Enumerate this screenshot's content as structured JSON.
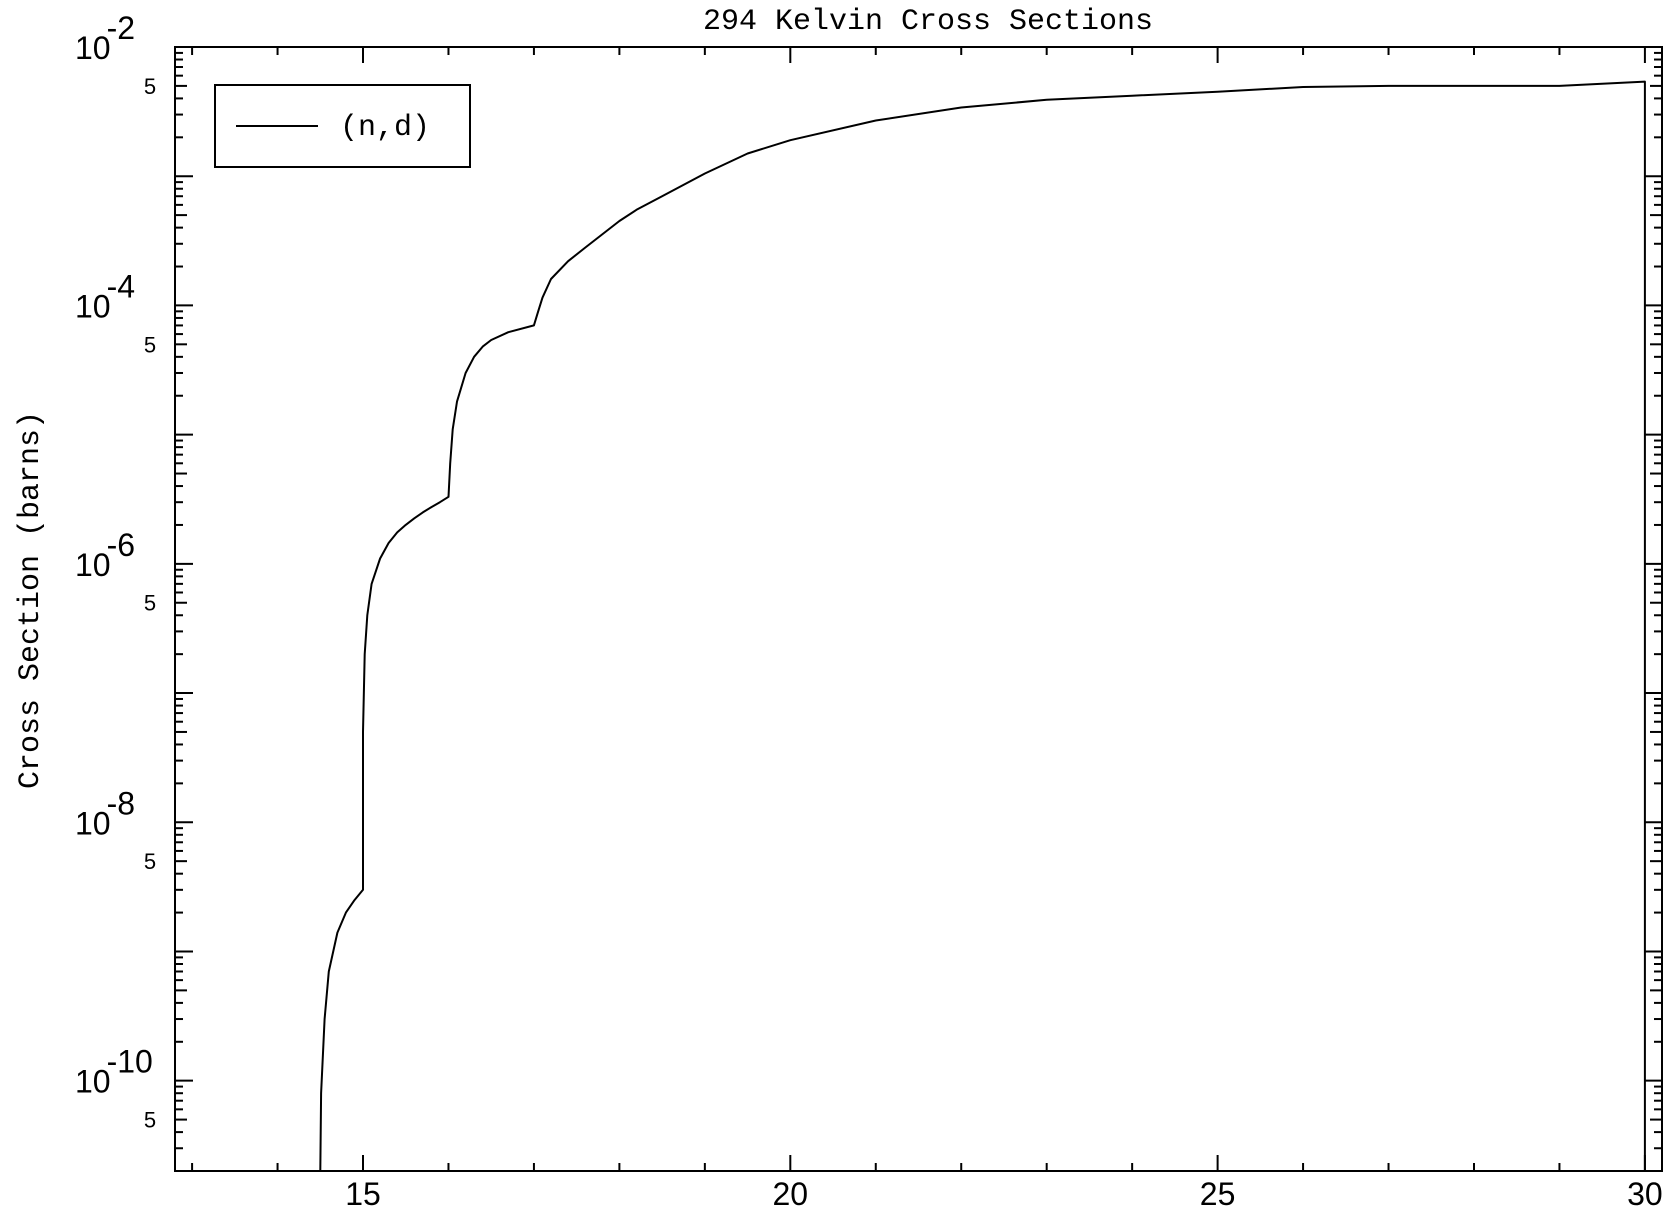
{
  "chart_data": {
    "type": "line",
    "title": "294 Kelvin Cross Sections",
    "xlabel": "",
    "ylabel": "Cross Section (barns)",
    "xlim": [
      12.8,
      30.2
    ],
    "ylim": [
      2e-11,
      0.01
    ],
    "y_scale": "log",
    "x_ticks": [
      15,
      20,
      25,
      30
    ],
    "x_tick_labels": [
      "15",
      "20",
      "25",
      "30"
    ],
    "y_major_ticks": [
      {
        "value": 0.01,
        "base": "10",
        "exp": "-2"
      },
      {
        "value": 0.0001,
        "base": "10",
        "exp": "-4"
      },
      {
        "value": 1e-06,
        "base": "10",
        "exp": "-6"
      },
      {
        "value": 1e-08,
        "base": "10",
        "exp": "-8"
      },
      {
        "value": 1e-10,
        "base": "10",
        "exp": "-10"
      }
    ],
    "y_minor_label": "5",
    "y_minor_label_values": [
      0.005,
      5e-05,
      5e-07,
      5e-09,
      5e-11
    ],
    "legend_position": "top-left",
    "grid": false,
    "series": [
      {
        "name": "(n,d)",
        "color": "#000000",
        "x": [
          14.5,
          14.51,
          14.55,
          14.6,
          14.7,
          14.8,
          14.9,
          15.0,
          15.0,
          15.02,
          15.05,
          15.1,
          15.2,
          15.3,
          15.4,
          15.5,
          15.6,
          15.7,
          15.8,
          15.9,
          16.0,
          16.02,
          16.05,
          16.1,
          16.2,
          16.3,
          16.4,
          16.5,
          16.7,
          17.0,
          17.05,
          17.1,
          17.2,
          17.4,
          17.6,
          18.0,
          18.2,
          18.5,
          19.0,
          19.5,
          20.0,
          21.0,
          22.0,
          23.0,
          24.0,
          25.0,
          26.0,
          27.0,
          28.0,
          29.0,
          30.0,
          30.0
        ],
        "y": [
          2e-11,
          8e-11,
          3e-10,
          7e-10,
          1.4e-09,
          2e-09,
          2.5e-09,
          3e-09,
          5e-08,
          2e-07,
          4e-07,
          7e-07,
          1.1e-06,
          1.45e-06,
          1.75e-06,
          2e-06,
          2.25e-06,
          2.5e-06,
          2.75e-06,
          3e-06,
          3.3e-06,
          6e-06,
          1.1e-05,
          1.8e-05,
          3e-05,
          4e-05,
          4.8e-05,
          5.4e-05,
          6.2e-05,
          7e-05,
          9e-05,
          0.000115,
          0.00016,
          0.00022,
          0.00028,
          0.00045,
          0.00055,
          0.0007,
          0.00105,
          0.0015,
          0.0019,
          0.0027,
          0.0034,
          0.0039,
          0.0042,
          0.0045,
          0.0049,
          0.005,
          0.005,
          0.005,
          0.0054,
          2e-11
        ]
      }
    ]
  }
}
